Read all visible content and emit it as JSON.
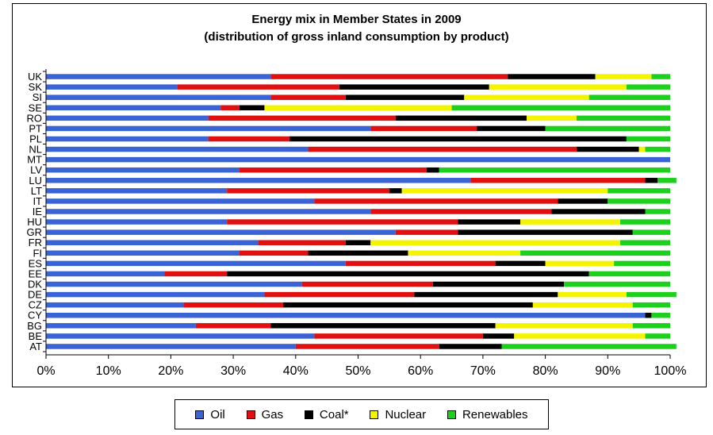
{
  "chart_data": {
    "type": "bar",
    "orientation": "horizontal",
    "stacked": "percent",
    "title": "Energy mix in Member States in 2009",
    "subtitle": "(distribution of gross inland consumption by product)",
    "categories": [
      "UK",
      "SK",
      "SI",
      "SE",
      "RO",
      "PT",
      "PL",
      "NL",
      "MT",
      "LV",
      "LU",
      "LT",
      "IT",
      "IE",
      "HU",
      "GR",
      "FR",
      "FI",
      "ES",
      "EE",
      "DK",
      "DE",
      "CZ",
      "CY",
      "BG",
      "BE",
      "AT"
    ],
    "series": [
      {
        "name": "Oil",
        "color": "#3a63d6",
        "values": [
          36,
          21,
          36,
          28,
          26,
          52,
          26,
          42,
          100,
          31,
          68,
          29,
          43,
          52,
          29,
          56,
          34,
          31,
          48,
          19,
          41,
          35,
          22,
          96,
          24,
          43,
          40
        ]
      },
      {
        "name": "Gas",
        "color": "#e01010",
        "values": [
          38,
          26,
          12,
          3,
          30,
          17,
          13,
          43,
          0,
          30,
          28,
          26,
          39,
          29,
          37,
          10,
          14,
          11,
          24,
          10,
          21,
          24,
          16,
          0,
          12,
          27,
          23
        ]
      },
      {
        "name": "Coal*",
        "color": "#000000",
        "values": [
          14,
          24,
          19,
          4,
          21,
          11,
          54,
          10,
          0,
          2,
          2,
          2,
          8,
          15,
          10,
          28,
          4,
          16,
          8,
          58,
          21,
          23,
          40,
          1,
          36,
          5,
          10
        ]
      },
      {
        "name": "Nuclear",
        "color": "#f4f400",
        "values": [
          9,
          22,
          20,
          30,
          8,
          0,
          0,
          1,
          0,
          0,
          0,
          33,
          0,
          0,
          16,
          0,
          40,
          18,
          11,
          0,
          0,
          11,
          16,
          0,
          22,
          21,
          0
        ]
      },
      {
        "name": "Renewables",
        "color": "#1ed01e",
        "values": [
          3,
          7,
          13,
          35,
          15,
          20,
          7,
          4,
          0,
          37,
          3,
          10,
          10,
          4,
          8,
          6,
          8,
          24,
          9,
          13,
          17,
          8,
          6,
          3,
          6,
          4,
          28
        ]
      }
    ],
    "x_ticks": [
      "0%",
      "10%",
      "20%",
      "30%",
      "40%",
      "50%",
      "60%",
      "70%",
      "80%",
      "90%",
      "100%"
    ],
    "xlim": [
      0,
      100
    ],
    "legend_position": "bottom",
    "grid": false
  }
}
